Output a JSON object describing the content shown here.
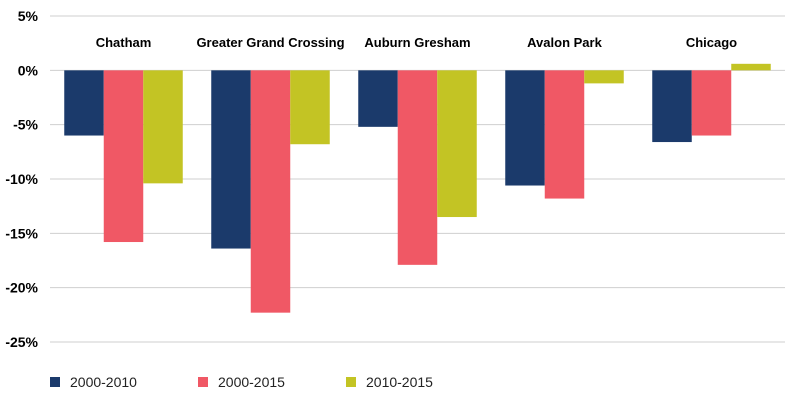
{
  "chart_data": {
    "type": "bar",
    "categories": [
      "Chatham",
      "Greater Grand Crossing",
      "Auburn Gresham",
      "Avalon Park",
      "Chicago"
    ],
    "series": [
      {
        "name": "2000-2010",
        "color": "#1b3a6b",
        "values": [
          -6.0,
          -16.4,
          -5.2,
          -10.6,
          -6.6
        ]
      },
      {
        "name": "2000-2015",
        "color": "#f05865",
        "values": [
          -15.8,
          -22.3,
          -17.9,
          -11.8,
          -6.0
        ]
      },
      {
        "name": "2010-2015",
        "color": "#c3c424",
        "values": [
          -10.4,
          -6.8,
          -13.5,
          -1.2,
          0.6
        ]
      }
    ],
    "ylim": [
      -25,
      5
    ],
    "yticks": [
      5,
      0,
      -5,
      -10,
      -15,
      -20,
      -25
    ],
    "ytick_labels": [
      "5%",
      "0%",
      "-5%",
      "-10%",
      "-15%",
      "-20%",
      "-25%"
    ],
    "title": "",
    "xlabel": "",
    "ylabel": "",
    "grid": true,
    "legend_position": "bottom"
  }
}
